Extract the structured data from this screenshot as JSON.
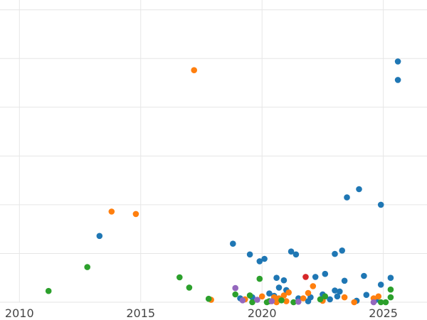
{
  "chart_data": {
    "type": "scatter",
    "title": "",
    "xlabel": "",
    "ylabel": "",
    "x_ticks": [
      2010,
      2015,
      2020,
      2025
    ],
    "x_tick_labels": [
      "2010",
      "2015",
      "2020",
      "2025"
    ],
    "xlim": [
      2009.2,
      2026.8
    ],
    "ylim": [
      0,
      6.2
    ],
    "y_grid": [
      0,
      1,
      2,
      3,
      4,
      5,
      6
    ],
    "grid": true,
    "legend": "none",
    "series": [
      {
        "color": "#1f77b4",
        "points": [
          [
            2013.3,
            1.36
          ],
          [
            2018.8,
            1.2
          ],
          [
            2019.5,
            0.98
          ],
          [
            2019.9,
            0.84
          ],
          [
            2020.1,
            0.89
          ],
          [
            2020.6,
            0.5
          ],
          [
            2020.9,
            0.45
          ],
          [
            2021.2,
            1.04
          ],
          [
            2021.4,
            0.98
          ],
          [
            2022.2,
            0.52
          ],
          [
            2022.6,
            0.58
          ],
          [
            2023.0,
            0.99
          ],
          [
            2023.3,
            1.06
          ],
          [
            2023.4,
            0.44
          ],
          [
            2023.5,
            2.15
          ],
          [
            2024.0,
            2.32
          ],
          [
            2024.2,
            0.54
          ],
          [
            2024.9,
            2.0
          ],
          [
            2025.3,
            0.5
          ],
          [
            2025.6,
            4.56
          ],
          [
            2025.6,
            4.94
          ],
          [
            2019.1,
            0.08
          ],
          [
            2019.6,
            0.1
          ],
          [
            2020.3,
            0.18
          ],
          [
            2020.5,
            0.13
          ],
          [
            2021.0,
            0.25
          ],
          [
            2021.5,
            0.08
          ],
          [
            2022.0,
            0.1
          ],
          [
            2022.8,
            0.06
          ],
          [
            2023.1,
            0.12
          ],
          [
            2023.2,
            0.22
          ],
          [
            2023.9,
            0.03
          ],
          [
            2024.3,
            0.15
          ],
          [
            2024.7,
            0.05
          ],
          [
            2024.9,
            0.36
          ],
          [
            2020.7,
            0.3
          ],
          [
            2021.9,
            0.02
          ],
          [
            2022.5,
            0.16
          ],
          [
            2023.0,
            0.24
          ]
        ]
      },
      {
        "color": "#ff7f0e",
        "points": [
          [
            2013.8,
            1.86
          ],
          [
            2014.8,
            1.81
          ],
          [
            2017.2,
            4.76
          ],
          [
            2017.9,
            0.05
          ],
          [
            2019.3,
            0.06
          ],
          [
            2020.0,
            0.12
          ],
          [
            2020.5,
            0.1
          ],
          [
            2020.7,
            0.08
          ],
          [
            2020.9,
            0.14
          ],
          [
            2021.0,
            0.02
          ],
          [
            2021.1,
            0.2
          ],
          [
            2021.7,
            0.08
          ],
          [
            2021.9,
            0.19
          ],
          [
            2022.1,
            0.33
          ],
          [
            2022.5,
            0.03
          ],
          [
            2023.4,
            0.1
          ],
          [
            2024.6,
            0.08
          ],
          [
            2024.8,
            0.12
          ],
          [
            2023.8,
            0.0
          ],
          [
            2020.6,
            0.0
          ]
        ]
      },
      {
        "color": "#2ca02c",
        "points": [
          [
            2011.2,
            0.23
          ],
          [
            2012.8,
            0.72
          ],
          [
            2016.6,
            0.51
          ],
          [
            2017.0,
            0.3
          ],
          [
            2017.8,
            0.07
          ],
          [
            2018.9,
            0.16
          ],
          [
            2019.5,
            0.14
          ],
          [
            2019.9,
            0.48
          ],
          [
            2020.2,
            0.0
          ],
          [
            2020.3,
            0.02
          ],
          [
            2020.8,
            0.04
          ],
          [
            2021.3,
            0.0
          ],
          [
            2022.4,
            0.06
          ],
          [
            2022.6,
            0.12
          ],
          [
            2024.9,
            0.0
          ],
          [
            2025.1,
            0.0
          ],
          [
            2025.3,
            0.1
          ],
          [
            2025.3,
            0.26
          ],
          [
            2019.6,
            0.0
          ]
        ]
      },
      {
        "color": "#d62728",
        "points": [
          [
            2021.8,
            0.52
          ]
        ]
      },
      {
        "color": "#9467bd",
        "points": [
          [
            2018.9,
            0.29
          ],
          [
            2019.2,
            0.04
          ],
          [
            2019.8,
            0.05
          ],
          [
            2020.4,
            0.02
          ],
          [
            2021.5,
            0.01
          ],
          [
            2024.6,
            0.0
          ]
        ]
      }
    ]
  }
}
